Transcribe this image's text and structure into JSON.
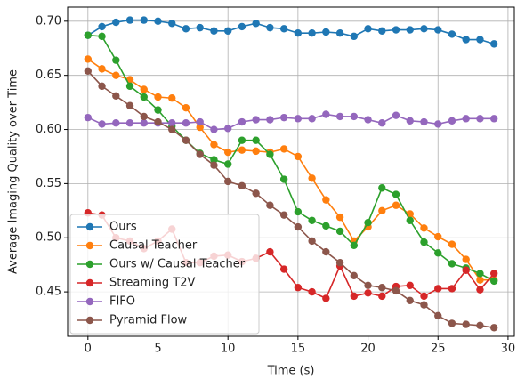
{
  "chart_data": {
    "type": "line",
    "x_label": "Time (s)",
    "y_label": "Average Imaging Quality over Time",
    "x": [
      0,
      1,
      2,
      3,
      4,
      5,
      6,
      7,
      8,
      9,
      10,
      11,
      12,
      13,
      14,
      15,
      16,
      17,
      18,
      19,
      20,
      21,
      22,
      23,
      24,
      25,
      26,
      27,
      28,
      29
    ],
    "xlim": [
      -1.45,
      30.45
    ],
    "ylim": [
      0.409,
      0.713
    ],
    "xticks": [
      0,
      5,
      10,
      15,
      20,
      25,
      30
    ],
    "yticks": [
      {
        "value": 0.45,
        "label": "0.45"
      },
      {
        "value": 0.5,
        "label": "0.50"
      },
      {
        "value": 0.55,
        "label": "0.55"
      },
      {
        "value": 0.6,
        "label": "0.60"
      },
      {
        "value": 0.65,
        "label": "0.65"
      },
      {
        "value": 0.7,
        "label": "0.70"
      }
    ],
    "grid": true,
    "legend": "lower left",
    "series": [
      {
        "name": "Ours",
        "color": "#1f77b4",
        "values": [
          0.687,
          0.695,
          0.699,
          0.701,
          0.701,
          0.7,
          0.698,
          0.693,
          0.694,
          0.691,
          0.691,
          0.695,
          0.698,
          0.694,
          0.693,
          0.689,
          0.689,
          0.69,
          0.689,
          0.686,
          0.693,
          0.691,
          0.692,
          0.692,
          0.693,
          0.692,
          0.688,
          0.683,
          0.683,
          0.679
        ]
      },
      {
        "name": "Causal Teacher",
        "color": "#ff7f0e",
        "values": [
          0.665,
          0.656,
          0.65,
          0.646,
          0.637,
          0.63,
          0.629,
          0.62,
          0.602,
          0.586,
          0.579,
          0.581,
          0.58,
          0.579,
          0.582,
          0.575,
          0.555,
          0.535,
          0.519,
          0.497,
          0.51,
          0.525,
          0.53,
          0.522,
          0.509,
          0.501,
          0.494,
          0.48,
          0.461,
          0.461
        ]
      },
      {
        "name": "Ours w/ Causal Teacher",
        "color": "#2ca02c",
        "values": [
          0.687,
          0.686,
          0.664,
          0.64,
          0.63,
          0.618,
          0.603,
          0.59,
          0.578,
          0.572,
          0.568,
          0.59,
          0.59,
          0.577,
          0.554,
          0.524,
          0.516,
          0.511,
          0.506,
          0.493,
          0.514,
          0.546,
          0.54,
          0.516,
          0.496,
          0.486,
          0.476,
          0.472,
          0.467,
          0.46
        ]
      },
      {
        "name": "Streaming T2V",
        "color": "#d62728",
        "values": [
          0.523,
          0.521,
          0.5,
          0.497,
          0.49,
          0.497,
          0.508,
          0.477,
          0.477,
          0.483,
          0.484,
          0.478,
          0.481,
          0.487,
          0.471,
          0.454,
          0.45,
          0.444,
          0.474,
          0.446,
          0.449,
          0.446,
          0.455,
          0.456,
          0.446,
          0.453,
          0.453,
          0.47,
          0.452,
          0.467
        ]
      },
      {
        "name": "FIFO",
        "color": "#9467bd",
        "values": [
          0.611,
          0.605,
          0.606,
          0.606,
          0.606,
          0.606,
          0.606,
          0.606,
          0.607,
          0.6,
          0.601,
          0.607,
          0.609,
          0.609,
          0.611,
          0.61,
          0.61,
          0.614,
          0.612,
          0.612,
          0.609,
          0.606,
          0.613,
          0.608,
          0.607,
          0.605,
          0.608,
          0.61,
          0.61,
          0.61
        ]
      },
      {
        "name": "Pyramid Flow",
        "color": "#8c564b",
        "values": [
          0.654,
          0.64,
          0.631,
          0.622,
          0.612,
          0.607,
          0.6,
          0.59,
          0.577,
          0.567,
          0.552,
          0.548,
          0.541,
          0.53,
          0.521,
          0.51,
          0.497,
          0.487,
          0.477,
          0.465,
          0.456,
          0.454,
          0.451,
          0.442,
          0.438,
          0.428,
          0.421,
          0.42,
          0.419,
          0.417
        ]
      }
    ]
  }
}
